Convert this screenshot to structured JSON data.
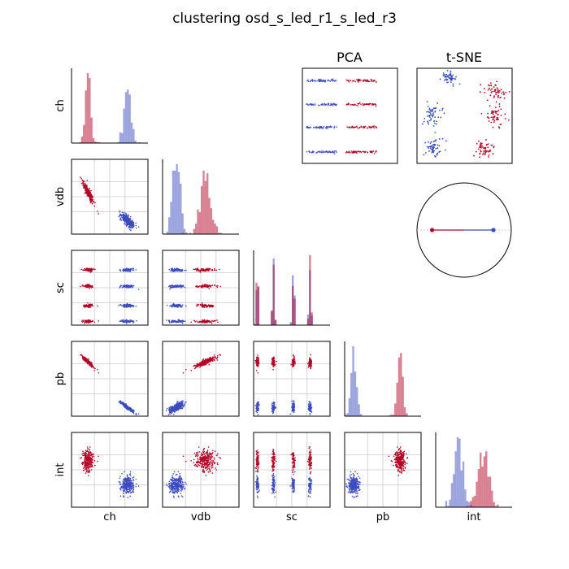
{
  "title": "clustering osd_s_led_r1_s_led_r3",
  "variables": [
    "ch",
    "vdb",
    "sc",
    "pb",
    "int"
  ],
  "colors": {
    "cluster_a": "#3b4cc0",
    "cluster_b": "#b40426"
  },
  "panel_titles": {
    "pca": "PCA",
    "tsne": "t-SNE"
  },
  "chart_data": {
    "type": "scatter",
    "layout": "pair-plot",
    "variables": [
      "ch",
      "vdb",
      "sc",
      "pb",
      "int"
    ],
    "clusters": [
      {
        "color": "#3b4cc0",
        "n": 300
      },
      {
        "color": "#b40426",
        "n": 300
      }
    ],
    "cluster_centers": {
      "ch": [
        0.73,
        0.22
      ],
      "vdb": [
        0.18,
        0.55
      ],
      "pb": [
        0.12,
        0.72
      ],
      "int": [
        0.3,
        0.62
      ]
    },
    "cluster_spread": {
      "ch": [
        0.045,
        0.035
      ],
      "vdb": [
        0.05,
        0.085
      ],
      "pb": [
        0.035,
        0.035
      ],
      "int": [
        0.06,
        0.07
      ]
    },
    "sc_levels": [
      0.05,
      0.26,
      0.52,
      0.74
    ],
    "pca_rows": [
      0.13,
      0.38,
      0.62,
      0.88
    ],
    "tsne_blobs": [
      {
        "cluster": 0,
        "x": 0.34,
        "y": 0.1,
        "sx": 0.03,
        "sy": 0.03
      },
      {
        "cluster": 0,
        "x": 0.15,
        "y": 0.48,
        "sx": 0.06,
        "sy": 0.07
      },
      {
        "cluster": 0,
        "x": 0.18,
        "y": 0.83,
        "sx": 0.05,
        "sy": 0.05
      },
      {
        "cluster": 1,
        "x": 0.82,
        "y": 0.24,
        "sx": 0.05,
        "sy": 0.04
      },
      {
        "cluster": 1,
        "x": 0.83,
        "y": 0.5,
        "sx": 0.06,
        "sy": 0.06
      },
      {
        "cluster": 1,
        "x": 0.7,
        "y": 0.85,
        "sx": 0.05,
        "sy": 0.04
      }
    ],
    "circle_points": [
      {
        "cluster": 1,
        "x": -0.68,
        "y": 0
      },
      {
        "cluster": 0,
        "x": 0.62,
        "y": 0
      }
    ],
    "grid": true,
    "legend": "none"
  }
}
